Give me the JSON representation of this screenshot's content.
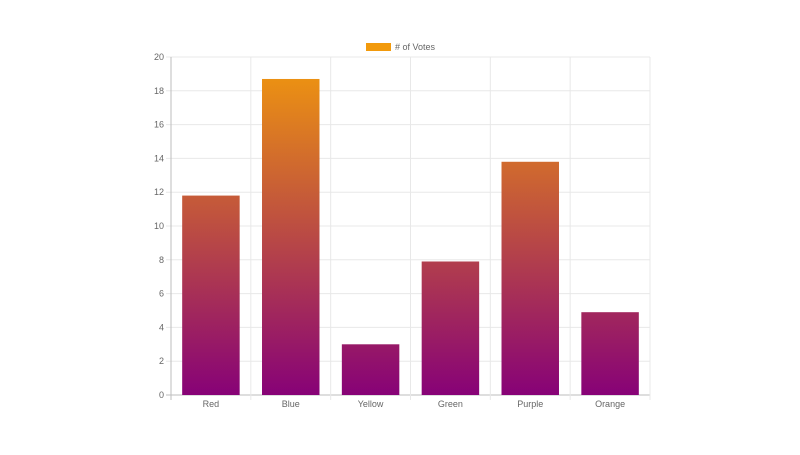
{
  "chart_data": {
    "type": "bar",
    "categories": [
      "Red",
      "Blue",
      "Yellow",
      "Green",
      "Purple",
      "Orange"
    ],
    "series": [
      {
        "name": "# of Votes",
        "values": [
          11.8,
          18.7,
          3.0,
          7.9,
          13.8,
          4.9
        ]
      }
    ],
    "ylim": [
      0,
      20
    ],
    "yticks": [
      0,
      2,
      4,
      6,
      8,
      10,
      12,
      14,
      16,
      18,
      20
    ],
    "grid": true,
    "legend_position": "top",
    "colors": {
      "gradient_top": "#f29a0c",
      "gradient_bottom": "#870277",
      "legend_swatch": "#f29a0c",
      "grid": "#e8e8e8",
      "axis": "#bdbdbd"
    }
  }
}
